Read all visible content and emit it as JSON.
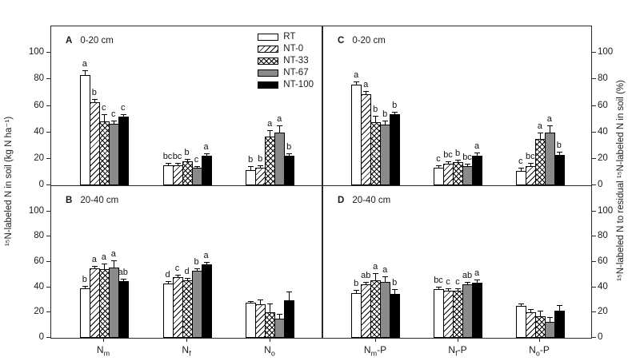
{
  "figure": {
    "background": "#ffffff",
    "line_color": "#2a2a2a",
    "bar_gray": "#8a8a8a",
    "bar_black": "#000000"
  },
  "chart_data": {
    "type": "bar",
    "series": [
      "RT",
      "NT-0",
      "NT-33",
      "NT-67",
      "NT-100"
    ],
    "series_patterns": [
      "white",
      "diag-hatch",
      "cross-hatch",
      "solid-gray",
      "solid-black"
    ],
    "legend_position": "top-right of panel A",
    "grid": "off",
    "left_axis": {
      "label": "¹⁵N-labeled N in soil (kg N ha⁻¹)",
      "ticks": [
        0,
        20,
        40,
        60,
        80,
        100
      ],
      "range": [
        0,
        120
      ]
    },
    "right_axis": {
      "label": "¹⁵N-labeled N to residual ¹⁵N-labeled N in soil (%)",
      "ticks": [
        0,
        20,
        40,
        60,
        80,
        100
      ],
      "range": [
        0,
        120
      ]
    },
    "panels": [
      {
        "id": "A",
        "depth": "0-20 cm",
        "column": "left",
        "row": "top",
        "has_legend": true,
        "categories": [
          {
            "base": "N",
            "sub": "m",
            "post": ""
          },
          {
            "base": "N",
            "sub": "f",
            "post": ""
          },
          {
            "base": "N",
            "sub": "o",
            "post": ""
          }
        ],
        "values": [
          [
            83.5,
            62.5,
            48.5,
            46.5,
            52
          ],
          [
            15,
            15,
            18,
            13,
            22.5
          ],
          [
            11.5,
            13.5,
            36.5,
            40,
            22.5
          ]
        ],
        "errors": [
          [
            3,
            2,
            5,
            2,
            1
          ],
          [
            1,
            1,
            1,
            0.7,
            1.5
          ],
          [
            2.5,
            1.5,
            4,
            5,
            1
          ]
        ],
        "letters": [
          [
            "a",
            "b",
            "c",
            "c",
            "c"
          ],
          [
            "bc",
            "bc",
            "b",
            "c",
            "a"
          ],
          [
            "b",
            "b",
            "a",
            "a",
            "b"
          ]
        ]
      },
      {
        "id": "B",
        "depth": "20-40 cm",
        "column": "left",
        "row": "bottom",
        "has_legend": false,
        "categories": [
          {
            "base": "N",
            "sub": "m",
            "post": ""
          },
          {
            "base": "N",
            "sub": "f",
            "post": ""
          },
          {
            "base": "N",
            "sub": "o",
            "post": ""
          }
        ],
        "values": [
          [
            39,
            55,
            54,
            55.5,
            45
          ],
          [
            43,
            48,
            45.5,
            53,
            58
          ],
          [
            27.5,
            26.5,
            20.5,
            15,
            29.5
          ]
        ],
        "errors": [
          [
            1.5,
            1.5,
            4,
            5,
            1.5
          ],
          [
            1,
            1,
            1,
            1,
            1
          ],
          [
            0.7,
            3,
            6,
            3,
            6
          ]
        ],
        "letters": [
          [
            "b",
            "a",
            "a",
            "a",
            "ab"
          ],
          [
            "d",
            "c",
            "d",
            "b",
            "a"
          ],
          [
            "",
            "",
            "",
            "",
            ""
          ]
        ]
      },
      {
        "id": "C",
        "depth": "0-20 cm",
        "column": "right",
        "row": "top",
        "has_legend": false,
        "categories": [
          {
            "base": "N",
            "sub": "m",
            "post": "-P"
          },
          {
            "base": "N",
            "sub": "f",
            "post": "-P"
          },
          {
            "base": "N",
            "sub": "o",
            "post": "-P"
          }
        ],
        "values": [
          [
            76,
            69,
            47.5,
            46,
            53.5
          ],
          [
            13,
            16,
            17.5,
            14.5,
            22.5
          ],
          [
            11,
            14.5,
            35,
            40,
            23
          ]
        ],
        "errors": [
          [
            2,
            2,
            4,
            2.5,
            1
          ],
          [
            1,
            1.5,
            1.5,
            1,
            2
          ],
          [
            2,
            2,
            4,
            5,
            2
          ]
        ],
        "letters": [
          [
            "a",
            "a",
            "b",
            "b",
            "b"
          ],
          [
            "c",
            "bc",
            "b",
            "bc",
            "a"
          ],
          [
            "c",
            "bc",
            "a",
            "a",
            "b"
          ]
        ]
      },
      {
        "id": "D",
        "depth": "20-40 cm",
        "column": "right",
        "row": "bottom",
        "has_legend": false,
        "categories": [
          {
            "base": "N",
            "sub": "m",
            "post": "-P"
          },
          {
            "base": "N",
            "sub": "f",
            "post": "-P"
          },
          {
            "base": "N",
            "sub": "o",
            "post": "-P"
          }
        ],
        "values": [
          [
            35.5,
            42,
            45.5,
            44.5,
            34.5
          ],
          [
            38.5,
            37.5,
            37.5,
            42,
            43.5
          ],
          [
            25,
            20.5,
            17,
            12.5,
            21.5
          ]
        ],
        "errors": [
          [
            2,
            1.5,
            5,
            4,
            3
          ],
          [
            1.5,
            1,
            1,
            1.5,
            2
          ],
          [
            1,
            2,
            4,
            3,
            4
          ]
        ],
        "letters": [
          [
            "b",
            "ab",
            "a",
            "a",
            "b"
          ],
          [
            "bc",
            "c",
            "c",
            "ab",
            "a"
          ],
          [
            "",
            "",
            "",
            "",
            ""
          ]
        ]
      }
    ]
  }
}
